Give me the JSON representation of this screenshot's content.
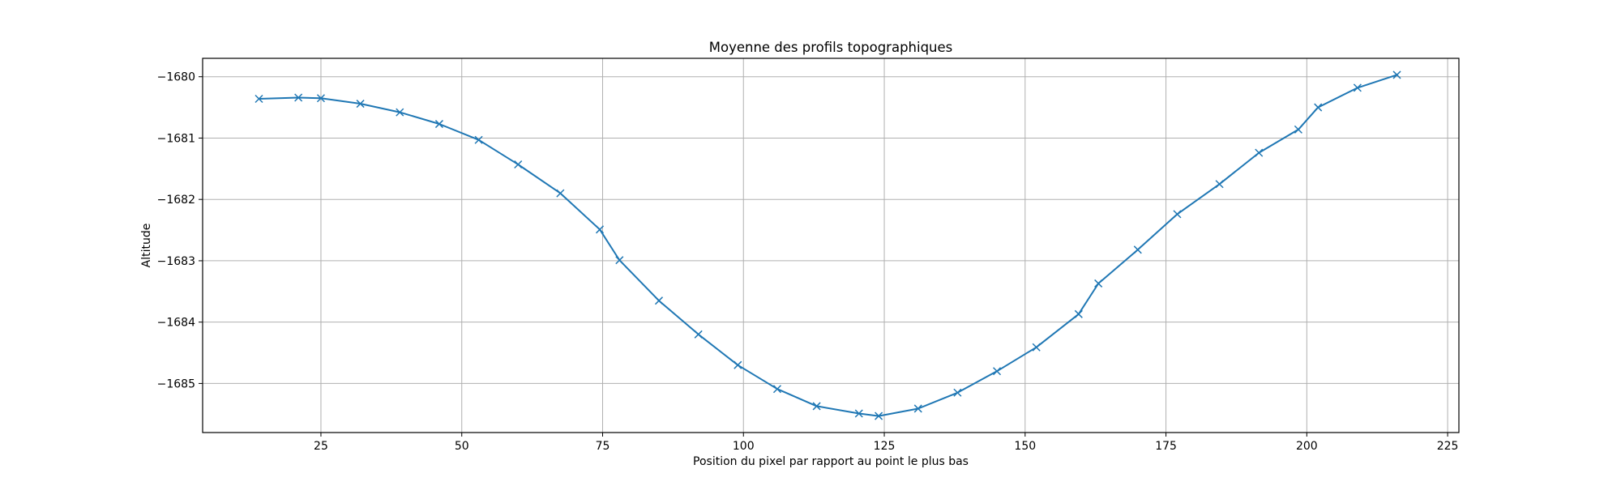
{
  "chart_data": {
    "type": "line",
    "title": "Moyenne des profils topographiques",
    "xlabel": "Position du pixel par rapport au point le plus bas",
    "ylabel": "Altitude",
    "xlim": [
      4,
      227
    ],
    "ylim": [
      -1685.8,
      -1679.7
    ],
    "xticks": [
      25,
      50,
      75,
      100,
      125,
      150,
      175,
      200,
      225
    ],
    "yticks": [
      -1685,
      -1684,
      -1683,
      -1682,
      -1681,
      -1680
    ],
    "grid": true,
    "legend": "none",
    "series": [
      {
        "color": "#1f77b4",
        "marker": "x",
        "x": [
          14,
          21,
          25,
          32,
          39,
          46,
          53,
          60,
          67.5,
          74.5,
          78,
          85,
          92,
          99,
          106,
          113,
          120.5,
          124,
          131,
          138,
          145,
          152,
          159.5,
          163,
          170,
          177,
          184.5,
          191.5,
          198.5,
          202,
          209,
          216
        ],
        "y": [
          -1680.36,
          -1680.34,
          -1680.35,
          -1680.44,
          -1680.58,
          -1680.77,
          -1681.03,
          -1681.43,
          -1681.9,
          -1682.49,
          -1682.99,
          -1683.65,
          -1684.2,
          -1684.7,
          -1685.09,
          -1685.37,
          -1685.49,
          -1685.53,
          -1685.41,
          -1685.15,
          -1684.8,
          -1684.41,
          -1683.87,
          -1683.37,
          -1682.82,
          -1682.24,
          -1681.75,
          -1681.24,
          -1680.86,
          -1680.5,
          -1680.18,
          -1679.97
        ]
      }
    ]
  }
}
